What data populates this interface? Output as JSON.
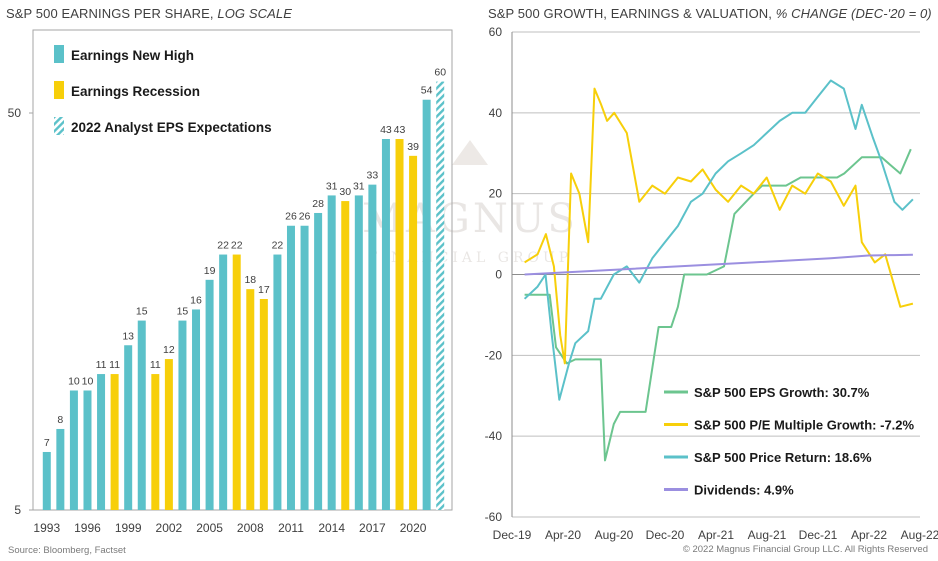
{
  "left_title": {
    "main": "S&P 500 EARNINGS PER SHARE,",
    "italic": "LOG SCALE"
  },
  "right_title": {
    "main": "S&P 500 GROWTH, EARNINGS & VALUATION,",
    "italic": "% CHANGE (DEC-'20 = 0)"
  },
  "source": "Source: Bloomberg, Factset",
  "copyright": "© 2022 Magnus Financial Group LLC. All Rights Reserved",
  "watermark": {
    "name": "MAGNUS",
    "sub": "FINANCIAL GROUP"
  },
  "colors": {
    "new_high": "#5bc1c9",
    "recession": "#f7cf0a",
    "expectation": "#5bc1c9",
    "eps_growth": "#6cc58f",
    "pe_growth": "#f7cf0a",
    "price_return": "#5bc1c9",
    "dividends": "#9b8fe0",
    "grid": "#bfbfbf"
  },
  "chart_data": [
    {
      "type": "bar",
      "title": "S&P 500 EARNINGS PER SHARE, LOG SCALE",
      "scale": "log",
      "ylim": [
        5,
        60
      ],
      "yticks": [
        "5",
        "50"
      ],
      "xtick_labels": [
        "1993",
        "1996",
        "1999",
        "2002",
        "2005",
        "2008",
        "2011",
        "2014",
        "2017",
        "2020"
      ],
      "categories": [
        1993,
        1994,
        1995,
        1996,
        1997,
        1998,
        1999,
        2000,
        2001,
        2002,
        2003,
        2004,
        2005,
        2006,
        2007,
        2008,
        2009,
        2010,
        2011,
        2012,
        2013,
        2014,
        2015,
        2016,
        2017,
        2018,
        2019,
        2020,
        2021,
        2022
      ],
      "values": [
        7,
        8,
        10,
        10,
        11,
        11,
        13,
        15,
        11,
        12,
        15,
        16,
        19,
        22,
        22,
        18,
        17,
        22,
        26,
        26,
        28,
        31,
        30,
        31,
        33,
        43,
        43,
        39,
        54,
        60
      ],
      "labels": [
        "7",
        "8",
        "10",
        "10",
        "11",
        "11",
        "13",
        "15",
        "11",
        "12",
        "15",
        "16",
        "19",
        "22",
        "22",
        "18",
        "17",
        "22",
        "26",
        "26",
        "28",
        "31",
        "30",
        "31",
        "33",
        "43",
        "43",
        "39",
        "54",
        "60"
      ],
      "kind": [
        "new_high",
        "new_high",
        "new_high",
        "new_high",
        "new_high",
        "recession",
        "new_high",
        "new_high",
        "recession",
        "recession",
        "new_high",
        "new_high",
        "new_high",
        "new_high",
        "recession",
        "recession",
        "recession",
        "new_high",
        "new_high",
        "new_high",
        "new_high",
        "new_high",
        "recession",
        "new_high",
        "new_high",
        "new_high",
        "recession",
        "recession",
        "new_high",
        "expectation"
      ],
      "legend": [
        {
          "key": "new_high",
          "label": "Earnings New High"
        },
        {
          "key": "recession",
          "label": "Earnings Recession"
        },
        {
          "key": "expectation",
          "label": "2022 Analyst EPS Expectations"
        }
      ],
      "legend_position": "top-left",
      "grid": false
    },
    {
      "type": "line",
      "title": "S&P 500 GROWTH, EARNINGS & VALUATION, % CHANGE (DEC-'20 = 0)",
      "ylim": [
        -60,
        60
      ],
      "yticks": [
        "-60",
        "-40",
        "-20",
        "0",
        "20",
        "40",
        "60"
      ],
      "xlim": [
        "2019-12",
        "2022-08"
      ],
      "xtick_labels": [
        "Dec-19",
        "Apr-20",
        "Aug-20",
        "Dec-20",
        "Apr-21",
        "Aug-21",
        "Dec-21",
        "Apr-22",
        "Aug-22"
      ],
      "grid": true,
      "legend_position": "bottom-right",
      "series": [
        {
          "name": "S&P 500 EPS Growth: 30.7%",
          "key": "eps_growth",
          "x": [
            "2019-12-31",
            "2020-01-31",
            "2020-02-29",
            "2020-03-15",
            "2020-04-10",
            "2020-04-30",
            "2020-05-31",
            "2020-06-10",
            "2020-06-30",
            "2020-07-10",
            "2020-07-31",
            "2020-08-15",
            "2020-08-31",
            "2020-09-15",
            "2020-10-15",
            "2020-11-15",
            "2020-12-15",
            "2020-12-31",
            "2021-01-15",
            "2021-02-15",
            "2021-03-10",
            "2021-04-20",
            "2021-05-15",
            "2021-06-30",
            "2021-07-20",
            "2021-09-15",
            "2021-10-20",
            "2021-12-01",
            "2022-01-15",
            "2022-02-01",
            "2022-03-15",
            "2022-05-01",
            "2022-06-15",
            "2022-07-10"
          ],
          "y": [
            -5,
            -5,
            -5,
            -18,
            -22,
            -21,
            -21,
            -21,
            -21,
            -46,
            -37,
            -34,
            -34,
            -34,
            -34,
            -13,
            -13,
            -8,
            0,
            0,
            0,
            2,
            15,
            20,
            22,
            22,
            24,
            24,
            24,
            25,
            29,
            29,
            25,
            31
          ]
        },
        {
          "name": "S&P 500 P/E Multiple Growth: -7.2%",
          "key": "pe_growth",
          "x": [
            "2019-12-31",
            "2020-01-31",
            "2020-02-20",
            "2020-03-10",
            "2020-03-25",
            "2020-04-05",
            "2020-04-20",
            "2020-05-10",
            "2020-05-31",
            "2020-06-15",
            "2020-07-01",
            "2020-07-15",
            "2020-08-01",
            "2020-08-31",
            "2020-09-30",
            "2020-10-31",
            "2020-11-30",
            "2020-12-31",
            "2021-01-31",
            "2021-02-28",
            "2021-03-31",
            "2021-04-30",
            "2021-05-31",
            "2021-06-30",
            "2021-07-31",
            "2021-08-31",
            "2021-09-30",
            "2021-10-31",
            "2021-11-30",
            "2021-12-31",
            "2022-01-31",
            "2022-02-28",
            "2022-03-15",
            "2022-04-15",
            "2022-05-10",
            "2022-06-15",
            "2022-07-15"
          ],
          "y": [
            3,
            5,
            10,
            2,
            -15,
            -22,
            25,
            20,
            8,
            46,
            42,
            38,
            40,
            35,
            18,
            22,
            20,
            24,
            23,
            26,
            21,
            18,
            22,
            20,
            24,
            16,
            22,
            20,
            25,
            23,
            17,
            22,
            8,
            3,
            5,
            -8,
            -7.2
          ]
        },
        {
          "name": "S&P 500 Price Return: 18.6%",
          "key": "price_return",
          "x": [
            "2019-12-31",
            "2020-01-31",
            "2020-02-19",
            "2020-03-05",
            "2020-03-23",
            "2020-04-15",
            "2020-04-30",
            "2020-05-31",
            "2020-06-15",
            "2020-06-30",
            "2020-07-31",
            "2020-08-31",
            "2020-09-30",
            "2020-10-31",
            "2020-11-30",
            "2020-12-31",
            "2021-01-31",
            "2021-02-28",
            "2021-03-31",
            "2021-04-30",
            "2021-05-31",
            "2021-06-30",
            "2021-07-31",
            "2021-08-31",
            "2021-09-30",
            "2021-10-31",
            "2021-11-30",
            "2021-12-31",
            "2022-01-31",
            "2022-02-28",
            "2022-03-15",
            "2022-04-10",
            "2022-05-01",
            "2022-06-01",
            "2022-06-20",
            "2022-07-15"
          ],
          "y": [
            -6,
            -3,
            0,
            -15,
            -31,
            -22,
            -17,
            -14,
            -6,
            -6,
            0,
            2,
            -2,
            4,
            8,
            12,
            18,
            20,
            25,
            28,
            30,
            32,
            35,
            38,
            40,
            40,
            44,
            48,
            46,
            36,
            42,
            34,
            28,
            18,
            16,
            18.6
          ]
        },
        {
          "name": "Dividends: 4.9%",
          "key": "dividends",
          "x": [
            "2019-12-31",
            "2020-06-30",
            "2020-12-31",
            "2021-06-30",
            "2021-12-31",
            "2022-03-31",
            "2022-05-31",
            "2022-07-15"
          ],
          "y": [
            0,
            1,
            2,
            3,
            4,
            4.7,
            4.8,
            4.9
          ]
        }
      ]
    }
  ]
}
